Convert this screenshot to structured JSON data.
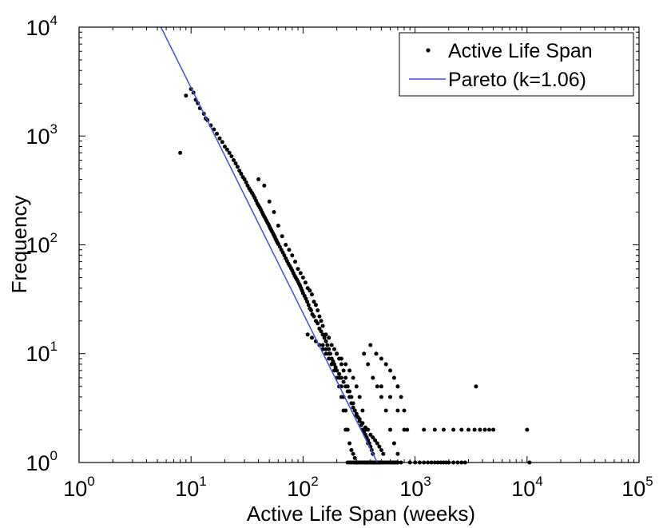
{
  "chart_data": {
    "type": "scatter",
    "title": "",
    "xlabel": "Active Life Span (weeks)",
    "ylabel": "Frequency",
    "xscale": "log",
    "yscale": "log",
    "xlim": [
      1,
      100000
    ],
    "ylim": [
      1,
      10000
    ],
    "x_ticks": [
      {
        "base": "10",
        "exp": "0"
      },
      {
        "base": "10",
        "exp": "1"
      },
      {
        "base": "10",
        "exp": "2"
      },
      {
        "base": "10",
        "exp": "3"
      },
      {
        "base": "10",
        "exp": "4"
      },
      {
        "base": "10",
        "exp": "5"
      }
    ],
    "y_ticks": [
      {
        "base": "10",
        "exp": "0"
      },
      {
        "base": "10",
        "exp": "1"
      },
      {
        "base": "10",
        "exp": "2"
      },
      {
        "base": "10",
        "exp": "3"
      },
      {
        "base": "10",
        "exp": "4"
      }
    ],
    "legend_position": "top-right",
    "colors": {
      "points": "#000000",
      "fit": "#3b4fe0",
      "axes": "#000000"
    },
    "series": [
      {
        "name": "Active Life Span",
        "kind": "scatter",
        "points": [
          [
            8,
            700
          ],
          [
            9,
            2350
          ],
          [
            10,
            2700
          ],
          [
            10.5,
            2500
          ],
          [
            11,
            2150
          ],
          [
            11.5,
            2000
          ],
          [
            12,
            1800
          ],
          [
            13,
            1600
          ],
          [
            13.5,
            1450
          ],
          [
            14,
            1400
          ],
          [
            15,
            1250
          ],
          [
            16,
            1150
          ],
          [
            17,
            1050
          ],
          [
            18,
            950
          ],
          [
            19,
            880
          ],
          [
            20,
            800
          ],
          [
            21,
            750
          ],
          [
            22,
            700
          ],
          [
            23,
            650
          ],
          [
            24,
            600
          ],
          [
            25,
            560
          ],
          [
            26,
            520
          ],
          [
            27,
            480
          ],
          [
            28,
            450
          ],
          [
            29,
            420
          ],
          [
            30,
            400
          ],
          [
            31,
            375
          ],
          [
            32,
            350
          ],
          [
            33,
            330
          ],
          [
            34,
            315
          ],
          [
            35,
            300
          ],
          [
            36,
            285
          ],
          [
            37,
            270
          ],
          [
            38,
            255
          ],
          [
            39,
            240
          ],
          [
            40,
            230
          ],
          [
            41,
            220
          ],
          [
            42,
            210
          ],
          [
            43,
            200
          ],
          [
            44,
            190
          ],
          [
            45,
            182
          ],
          [
            46,
            175
          ],
          [
            47,
            168
          ],
          [
            48,
            160
          ],
          [
            49,
            155
          ],
          [
            50,
            148
          ],
          [
            51,
            142
          ],
          [
            52,
            137
          ],
          [
            53,
            132
          ],
          [
            54,
            127
          ],
          [
            55,
            122
          ],
          [
            56,
            118
          ],
          [
            57,
            113
          ],
          [
            58,
            109
          ],
          [
            59,
            105
          ],
          [
            60,
            102
          ],
          [
            62,
            96
          ],
          [
            64,
            90
          ],
          [
            66,
            85
          ],
          [
            68,
            80
          ],
          [
            70,
            75
          ],
          [
            72,
            71
          ],
          [
            74,
            67
          ],
          [
            76,
            64
          ],
          [
            78,
            61
          ],
          [
            80,
            58
          ],
          [
            82,
            55
          ],
          [
            84,
            52
          ],
          [
            86,
            50
          ],
          [
            88,
            48
          ],
          [
            90,
            46
          ],
          [
            92,
            44
          ],
          [
            94,
            42
          ],
          [
            96,
            40
          ],
          [
            98,
            38
          ],
          [
            100,
            36
          ],
          [
            103,
            34
          ],
          [
            106,
            32
          ],
          [
            109,
            30
          ],
          [
            112,
            28
          ],
          [
            115,
            26
          ],
          [
            118,
            25
          ],
          [
            121,
            23
          ],
          [
            125,
            22
          ],
          [
            130,
            20
          ],
          [
            135,
            19
          ],
          [
            140,
            17
          ],
          [
            145,
            16
          ],
          [
            150,
            15
          ],
          [
            155,
            14
          ],
          [
            160,
            13
          ],
          [
            165,
            12
          ],
          [
            170,
            11
          ],
          [
            175,
            10
          ],
          [
            180,
            9
          ],
          [
            185,
            8.5
          ],
          [
            190,
            8
          ],
          [
            195,
            7.5
          ],
          [
            200,
            7
          ],
          [
            210,
            6.5
          ],
          [
            220,
            6
          ],
          [
            230,
            5.5
          ],
          [
            240,
            5
          ],
          [
            250,
            4.5
          ],
          [
            260,
            4
          ],
          [
            270,
            3.5
          ],
          [
            280,
            3.2
          ],
          [
            290,
            3
          ],
          [
            300,
            2.7
          ],
          [
            320,
            2.5
          ],
          [
            340,
            2.3
          ],
          [
            360,
            2.1
          ],
          [
            380,
            2
          ],
          [
            400,
            1.8
          ],
          [
            420,
            1.7
          ],
          [
            440,
            1.6
          ],
          [
            460,
            1.5
          ],
          [
            480,
            1.4
          ],
          [
            500,
            1.3
          ],
          [
            520,
            1.2
          ],
          [
            40,
            400
          ],
          [
            45,
            350
          ],
          [
            50,
            250
          ],
          [
            55,
            200
          ],
          [
            60,
            150
          ],
          [
            65,
            120
          ],
          [
            70,
            100
          ],
          [
            75,
            90
          ],
          [
            80,
            80
          ],
          [
            85,
            70
          ],
          [
            90,
            60
          ],
          [
            95,
            55
          ],
          [
            100,
            50
          ],
          [
            105,
            45
          ],
          [
            110,
            40
          ],
          [
            115,
            38
          ],
          [
            120,
            35
          ],
          [
            125,
            30
          ],
          [
            130,
            28
          ],
          [
            135,
            25
          ],
          [
            140,
            22
          ],
          [
            145,
            20
          ],
          [
            150,
            18
          ],
          [
            160,
            15
          ],
          [
            170,
            14
          ],
          [
            180,
            12
          ],
          [
            190,
            11
          ],
          [
            200,
            10
          ],
          [
            210,
            9
          ],
          [
            220,
            8
          ],
          [
            230,
            7
          ],
          [
            240,
            6
          ],
          [
            250,
            5
          ],
          [
            260,
            4.5
          ],
          [
            270,
            4
          ],
          [
            280,
            3.5
          ],
          [
            290,
            3
          ],
          [
            300,
            2.8
          ],
          [
            310,
            2.6
          ],
          [
            320,
            2.4
          ],
          [
            330,
            2.2
          ],
          [
            340,
            2
          ],
          [
            350,
            1.9
          ],
          [
            360,
            1.8
          ],
          [
            370,
            1.7
          ],
          [
            380,
            1.6
          ],
          [
            390,
            1.5
          ],
          [
            400,
            1.4
          ],
          [
            410,
            1.3
          ],
          [
            420,
            1.2
          ],
          [
            110,
            15
          ],
          [
            120,
            14
          ],
          [
            130,
            13
          ],
          [
            140,
            12
          ],
          [
            150,
            11
          ],
          [
            160,
            10
          ],
          [
            170,
            9
          ],
          [
            180,
            8
          ],
          [
            190,
            7
          ],
          [
            200,
            6
          ],
          [
            210,
            5
          ],
          [
            220,
            4
          ],
          [
            230,
            3
          ],
          [
            240,
            2
          ],
          [
            250,
            1
          ],
          [
            260,
            1
          ],
          [
            270,
            1
          ],
          [
            280,
            1
          ],
          [
            290,
            1
          ],
          [
            300,
            1
          ],
          [
            310,
            1
          ],
          [
            320,
            1
          ],
          [
            330,
            1
          ],
          [
            340,
            1
          ],
          [
            350,
            1
          ],
          [
            360,
            1
          ],
          [
            370,
            1
          ],
          [
            380,
            1
          ],
          [
            390,
            1
          ],
          [
            400,
            1
          ],
          [
            410,
            1
          ],
          [
            420,
            1
          ],
          [
            430,
            1
          ],
          [
            440,
            1
          ],
          [
            450,
            1
          ],
          [
            460,
            1
          ],
          [
            470,
            1
          ],
          [
            480,
            1
          ],
          [
            490,
            1
          ],
          [
            500,
            1
          ],
          [
            520,
            1
          ],
          [
            540,
            1
          ],
          [
            560,
            1
          ],
          [
            580,
            1
          ],
          [
            600,
            1
          ],
          [
            620,
            1
          ],
          [
            640,
            1
          ],
          [
            660,
            1
          ],
          [
            680,
            1
          ],
          [
            700,
            1
          ],
          [
            150,
            12
          ],
          [
            160,
            11
          ],
          [
            170,
            10
          ],
          [
            180,
            9
          ],
          [
            190,
            8
          ],
          [
            200,
            7
          ],
          [
            210,
            6
          ],
          [
            220,
            5
          ],
          [
            230,
            4
          ],
          [
            240,
            3
          ],
          [
            250,
            2
          ],
          [
            260,
            1.5
          ],
          [
            270,
            1.3
          ],
          [
            280,
            1.2
          ],
          [
            290,
            1.1
          ],
          [
            300,
            1
          ],
          [
            200,
            10
          ],
          [
            220,
            9
          ],
          [
            240,
            8
          ],
          [
            260,
            7
          ],
          [
            280,
            6
          ],
          [
            300,
            5
          ],
          [
            320,
            4
          ],
          [
            340,
            3
          ],
          [
            360,
            2
          ],
          [
            380,
            1.5
          ],
          [
            400,
            12
          ],
          [
            450,
            10
          ],
          [
            500,
            9
          ],
          [
            550,
            8
          ],
          [
            600,
            7
          ],
          [
            650,
            6
          ],
          [
            700,
            5
          ],
          [
            750,
            4
          ],
          [
            800,
            3
          ],
          [
            850,
            2
          ],
          [
            350,
            10
          ],
          [
            380,
            8
          ],
          [
            420,
            6
          ],
          [
            460,
            5
          ],
          [
            500,
            4
          ],
          [
            550,
            3
          ],
          [
            600,
            2
          ],
          [
            650,
            1.5
          ],
          [
            700,
            1.2
          ],
          [
            750,
            1
          ],
          [
            500,
            5
          ],
          [
            600,
            4
          ],
          [
            700,
            3
          ],
          [
            800,
            2
          ],
          [
            900,
            1
          ],
          [
            1000,
            1
          ],
          [
            1100,
            1
          ],
          [
            1200,
            1
          ],
          [
            1300,
            1
          ],
          [
            1400,
            1
          ],
          [
            1500,
            1
          ],
          [
            1600,
            1
          ],
          [
            1700,
            1
          ],
          [
            1800,
            1
          ],
          [
            1900,
            1
          ],
          [
            2000,
            1
          ],
          [
            2200,
            1
          ],
          [
            2400,
            1
          ],
          [
            2600,
            1
          ],
          [
            2800,
            1
          ],
          [
            1200,
            2
          ],
          [
            1500,
            2
          ],
          [
            1800,
            2
          ],
          [
            2200,
            2
          ],
          [
            2600,
            2
          ],
          [
            3000,
            2
          ],
          [
            3400,
            2
          ],
          [
            3800,
            2
          ],
          [
            4200,
            2
          ],
          [
            4600,
            2
          ],
          [
            3500,
            5
          ],
          [
            5000,
            2
          ],
          [
            10000,
            2
          ],
          [
            10500,
            1
          ]
        ]
      },
      {
        "name": "Pareto (k=1.06)",
        "kind": "line",
        "points": [
          [
            5.38,
            10000
          ],
          [
            460,
            1
          ]
        ]
      }
    ]
  }
}
